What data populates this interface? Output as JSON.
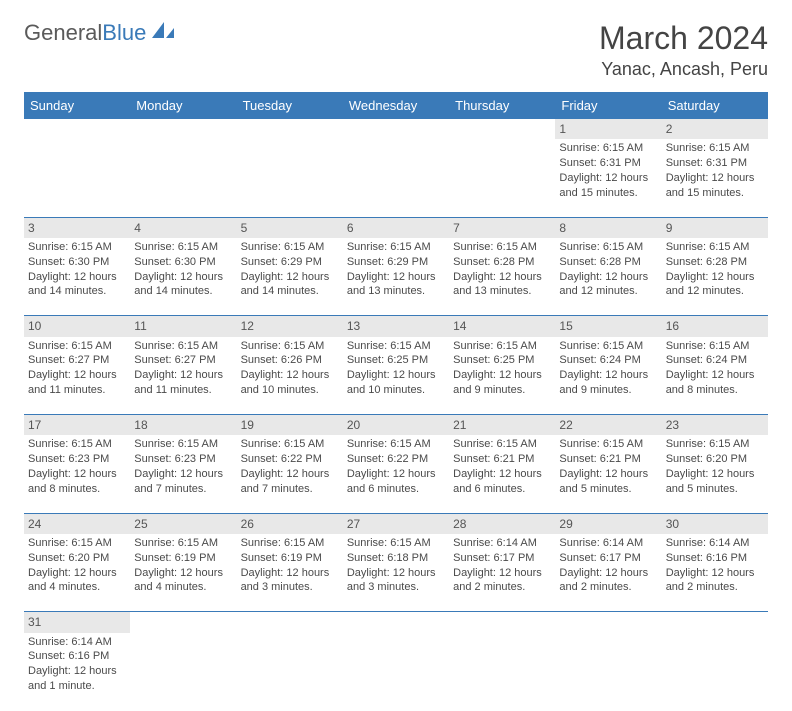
{
  "logo": {
    "text1": "General",
    "text2": "Blue"
  },
  "title": "March 2024",
  "location": "Yanac, Ancash, Peru",
  "colors": {
    "header_bg": "#3a7ab8",
    "header_fg": "#ffffff",
    "daynum_bg": "#e8e8e8",
    "rule": "#3a7ab8",
    "text": "#4a4a4a"
  },
  "weekdays": [
    "Sunday",
    "Monday",
    "Tuesday",
    "Wednesday",
    "Thursday",
    "Friday",
    "Saturday"
  ],
  "weeks": [
    [
      null,
      null,
      null,
      null,
      null,
      {
        "n": "1",
        "sr": "Sunrise: 6:15 AM",
        "ss": "Sunset: 6:31 PM",
        "dl": "Daylight: 12 hours and 15 minutes."
      },
      {
        "n": "2",
        "sr": "Sunrise: 6:15 AM",
        "ss": "Sunset: 6:31 PM",
        "dl": "Daylight: 12 hours and 15 minutes."
      }
    ],
    [
      {
        "n": "3",
        "sr": "Sunrise: 6:15 AM",
        "ss": "Sunset: 6:30 PM",
        "dl": "Daylight: 12 hours and 14 minutes."
      },
      {
        "n": "4",
        "sr": "Sunrise: 6:15 AM",
        "ss": "Sunset: 6:30 PM",
        "dl": "Daylight: 12 hours and 14 minutes."
      },
      {
        "n": "5",
        "sr": "Sunrise: 6:15 AM",
        "ss": "Sunset: 6:29 PM",
        "dl": "Daylight: 12 hours and 14 minutes."
      },
      {
        "n": "6",
        "sr": "Sunrise: 6:15 AM",
        "ss": "Sunset: 6:29 PM",
        "dl": "Daylight: 12 hours and 13 minutes."
      },
      {
        "n": "7",
        "sr": "Sunrise: 6:15 AM",
        "ss": "Sunset: 6:28 PM",
        "dl": "Daylight: 12 hours and 13 minutes."
      },
      {
        "n": "8",
        "sr": "Sunrise: 6:15 AM",
        "ss": "Sunset: 6:28 PM",
        "dl": "Daylight: 12 hours and 12 minutes."
      },
      {
        "n": "9",
        "sr": "Sunrise: 6:15 AM",
        "ss": "Sunset: 6:28 PM",
        "dl": "Daylight: 12 hours and 12 minutes."
      }
    ],
    [
      {
        "n": "10",
        "sr": "Sunrise: 6:15 AM",
        "ss": "Sunset: 6:27 PM",
        "dl": "Daylight: 12 hours and 11 minutes."
      },
      {
        "n": "11",
        "sr": "Sunrise: 6:15 AM",
        "ss": "Sunset: 6:27 PM",
        "dl": "Daylight: 12 hours and 11 minutes."
      },
      {
        "n": "12",
        "sr": "Sunrise: 6:15 AM",
        "ss": "Sunset: 6:26 PM",
        "dl": "Daylight: 12 hours and 10 minutes."
      },
      {
        "n": "13",
        "sr": "Sunrise: 6:15 AM",
        "ss": "Sunset: 6:25 PM",
        "dl": "Daylight: 12 hours and 10 minutes."
      },
      {
        "n": "14",
        "sr": "Sunrise: 6:15 AM",
        "ss": "Sunset: 6:25 PM",
        "dl": "Daylight: 12 hours and 9 minutes."
      },
      {
        "n": "15",
        "sr": "Sunrise: 6:15 AM",
        "ss": "Sunset: 6:24 PM",
        "dl": "Daylight: 12 hours and 9 minutes."
      },
      {
        "n": "16",
        "sr": "Sunrise: 6:15 AM",
        "ss": "Sunset: 6:24 PM",
        "dl": "Daylight: 12 hours and 8 minutes."
      }
    ],
    [
      {
        "n": "17",
        "sr": "Sunrise: 6:15 AM",
        "ss": "Sunset: 6:23 PM",
        "dl": "Daylight: 12 hours and 8 minutes."
      },
      {
        "n": "18",
        "sr": "Sunrise: 6:15 AM",
        "ss": "Sunset: 6:23 PM",
        "dl": "Daylight: 12 hours and 7 minutes."
      },
      {
        "n": "19",
        "sr": "Sunrise: 6:15 AM",
        "ss": "Sunset: 6:22 PM",
        "dl": "Daylight: 12 hours and 7 minutes."
      },
      {
        "n": "20",
        "sr": "Sunrise: 6:15 AM",
        "ss": "Sunset: 6:22 PM",
        "dl": "Daylight: 12 hours and 6 minutes."
      },
      {
        "n": "21",
        "sr": "Sunrise: 6:15 AM",
        "ss": "Sunset: 6:21 PM",
        "dl": "Daylight: 12 hours and 6 minutes."
      },
      {
        "n": "22",
        "sr": "Sunrise: 6:15 AM",
        "ss": "Sunset: 6:21 PM",
        "dl": "Daylight: 12 hours and 5 minutes."
      },
      {
        "n": "23",
        "sr": "Sunrise: 6:15 AM",
        "ss": "Sunset: 6:20 PM",
        "dl": "Daylight: 12 hours and 5 minutes."
      }
    ],
    [
      {
        "n": "24",
        "sr": "Sunrise: 6:15 AM",
        "ss": "Sunset: 6:20 PM",
        "dl": "Daylight: 12 hours and 4 minutes."
      },
      {
        "n": "25",
        "sr": "Sunrise: 6:15 AM",
        "ss": "Sunset: 6:19 PM",
        "dl": "Daylight: 12 hours and 4 minutes."
      },
      {
        "n": "26",
        "sr": "Sunrise: 6:15 AM",
        "ss": "Sunset: 6:19 PM",
        "dl": "Daylight: 12 hours and 3 minutes."
      },
      {
        "n": "27",
        "sr": "Sunrise: 6:15 AM",
        "ss": "Sunset: 6:18 PM",
        "dl": "Daylight: 12 hours and 3 minutes."
      },
      {
        "n": "28",
        "sr": "Sunrise: 6:14 AM",
        "ss": "Sunset: 6:17 PM",
        "dl": "Daylight: 12 hours and 2 minutes."
      },
      {
        "n": "29",
        "sr": "Sunrise: 6:14 AM",
        "ss": "Sunset: 6:17 PM",
        "dl": "Daylight: 12 hours and 2 minutes."
      },
      {
        "n": "30",
        "sr": "Sunrise: 6:14 AM",
        "ss": "Sunset: 6:16 PM",
        "dl": "Daylight: 12 hours and 2 minutes."
      }
    ],
    [
      {
        "n": "31",
        "sr": "Sunrise: 6:14 AM",
        "ss": "Sunset: 6:16 PM",
        "dl": "Daylight: 12 hours and 1 minute."
      },
      null,
      null,
      null,
      null,
      null,
      null
    ]
  ]
}
